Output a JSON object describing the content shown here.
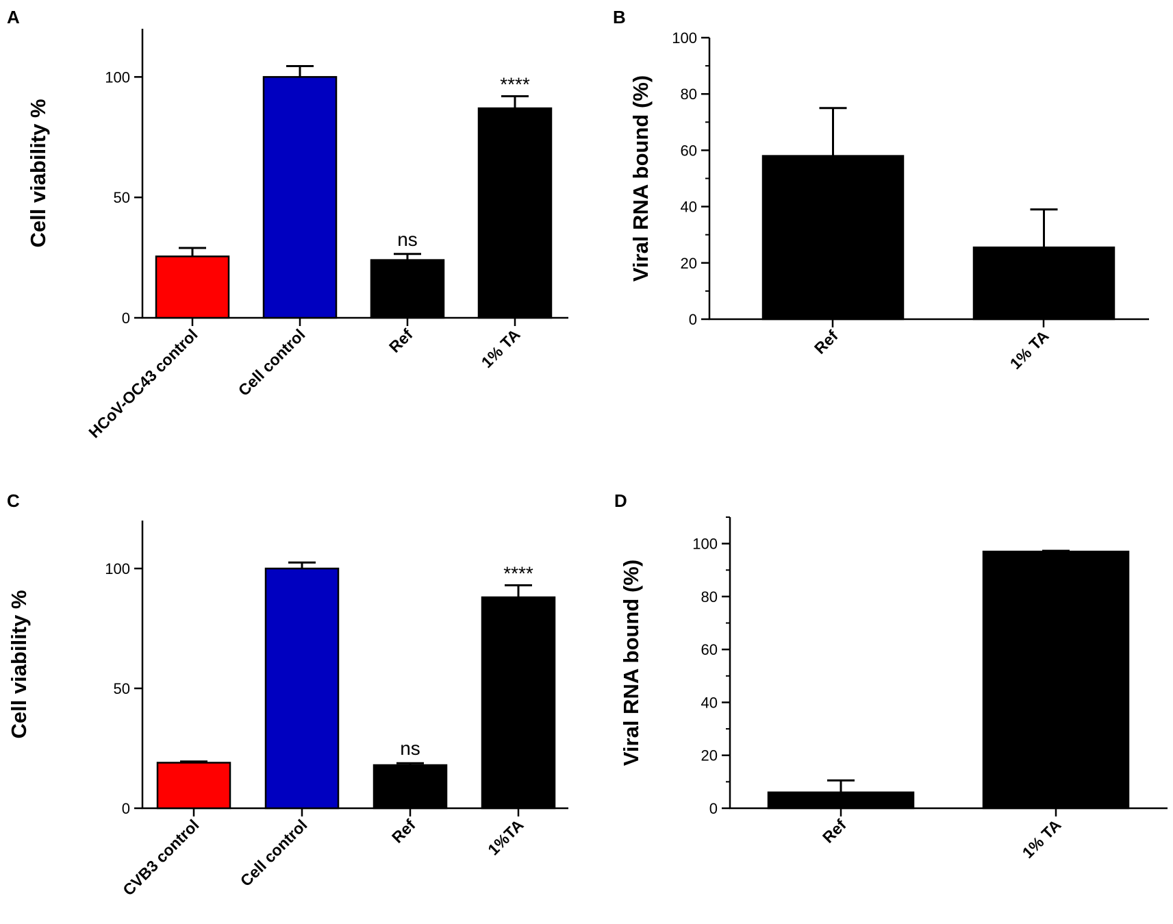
{
  "colors": {
    "red": "#ff0000",
    "blue": "#0000c0",
    "black": "#000000"
  },
  "chart_data": [
    {
      "panel": "A",
      "type": "bar",
      "ylabel": "Cell viability %",
      "xlabel": "",
      "ylim": [
        0,
        120
      ],
      "yticks": [
        0,
        50,
        100
      ],
      "minor_ticks": false,
      "categories": [
        "HCoV-OC43 control",
        "Cell control",
        "Ref",
        "1% TA"
      ],
      "values": [
        25.5,
        100,
        24,
        87
      ],
      "errors": [
        3.5,
        4.5,
        2.5,
        5
      ],
      "colors": [
        "#ff0000",
        "#0000c0",
        "#000000",
        "#000000"
      ],
      "annotations": [
        "",
        "",
        "ns",
        "****"
      ]
    },
    {
      "panel": "B",
      "type": "bar",
      "ylabel": "Viral RNA bound (%)",
      "xlabel": "",
      "ylim": [
        0,
        100
      ],
      "yticks": [
        0,
        20,
        40,
        60,
        80,
        100
      ],
      "minor_ticks": true,
      "categories": [
        "Ref",
        "1% TA"
      ],
      "values": [
        58,
        25.5
      ],
      "errors": [
        17,
        13.5
      ],
      "colors": [
        "#000000",
        "#000000"
      ],
      "annotations": [
        "",
        ""
      ]
    },
    {
      "panel": "C",
      "type": "bar",
      "ylabel": "Cell viability %",
      "xlabel": "",
      "ylim": [
        0,
        120
      ],
      "yticks": [
        0,
        50,
        100
      ],
      "minor_ticks": false,
      "categories": [
        "CVB3 control",
        "Cell control",
        "Ref",
        "1%TA"
      ],
      "values": [
        19,
        100,
        18,
        88
      ],
      "errors": [
        0.5,
        2.5,
        0.8,
        5
      ],
      "colors": [
        "#ff0000",
        "#0000c0",
        "#000000",
        "#000000"
      ],
      "annotations": [
        "",
        "",
        "ns",
        "****"
      ]
    },
    {
      "panel": "D",
      "type": "bar",
      "ylabel": "Viral RNA bound (%)",
      "xlabel": "",
      "ylim": [
        0,
        110
      ],
      "yticks": [
        0,
        20,
        40,
        60,
        80,
        100
      ],
      "minor_ticks": true,
      "categories": [
        "Ref",
        "1% TA"
      ],
      "values": [
        6,
        97
      ],
      "errors": [
        4.5,
        0.3
      ],
      "colors": [
        "#000000",
        "#000000"
      ],
      "annotations": [
        "",
        ""
      ]
    }
  ]
}
